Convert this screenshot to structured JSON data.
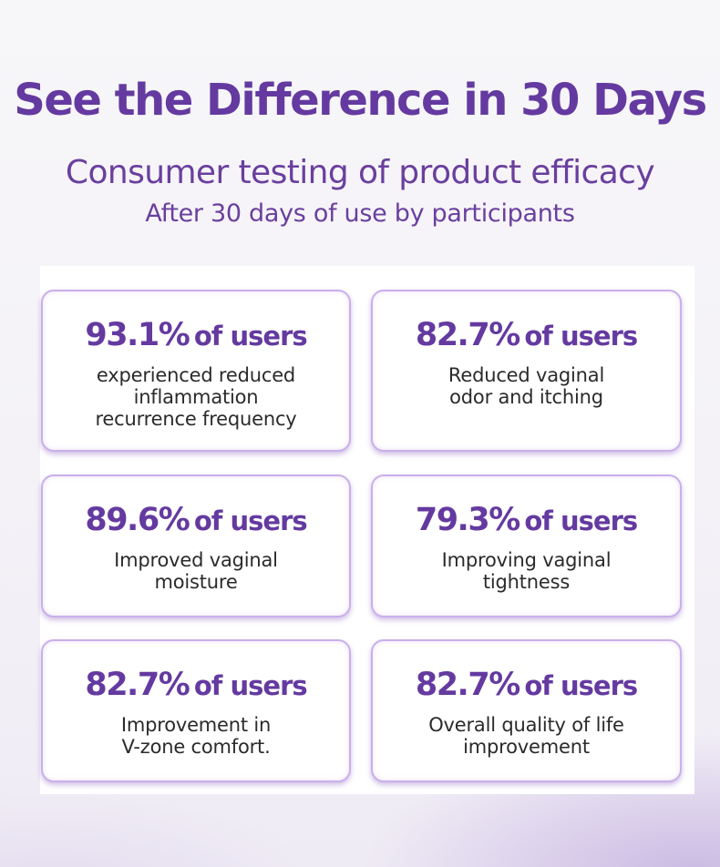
{
  "header": {
    "title": "See the Difference in 30 Days",
    "subtitle": "Consumer testing of product efficacy",
    "note": "After 30 days of use by participants"
  },
  "colors": {
    "accent": "#643aa0",
    "card_border": "#c9b0ea",
    "text": "#2b2b2b"
  },
  "cards": [
    {
      "percent": "93.1%",
      "unit": "of users",
      "lines": [
        "experienced reduced",
        "inflammation",
        "recurrence frequency"
      ]
    },
    {
      "percent": "82.7%",
      "unit": "of users",
      "lines": [
        "Reduced vaginal",
        "odor and itching"
      ]
    },
    {
      "percent": "89.6%",
      "unit": "of users",
      "lines": [
        "Improved vaginal",
        "moisture"
      ]
    },
    {
      "percent": "79.3%",
      "unit": "of users",
      "lines": [
        "Improving vaginal",
        "tightness"
      ]
    },
    {
      "percent": "82.7%",
      "unit": "of users",
      "lines": [
        "Improvement in",
        "V-zone comfort."
      ]
    },
    {
      "percent": "82.7%",
      "unit": "of users",
      "lines": [
        "Overall quality of life",
        "improvement"
      ]
    }
  ]
}
